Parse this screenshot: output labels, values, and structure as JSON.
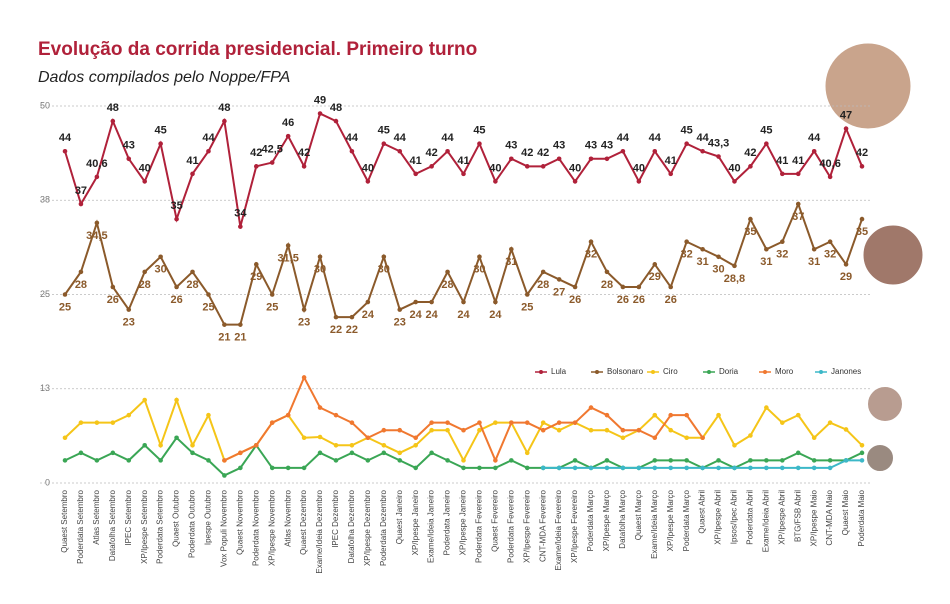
{
  "chart_data": {
    "type": "line",
    "title": "Evolução da corrida presidencial. Primeiro turno",
    "subtitle": "Dados compilados pelo Noppe/FPA",
    "categories": [
      "Quaest Setembro",
      "Poderdata Setembro",
      "Atlas Setembro",
      "Datafolha Setembro",
      "IPEC Setembro",
      "XP/Ipespe Setembro",
      "Poderdata Setembro",
      "Quaest Outubro",
      "Poderdata Outubro",
      "Ipespe Outubro",
      "Vox Populi Novembro",
      "Quaest Novembro",
      "Poderdata Novembro",
      "XP/Ipespe Novembro",
      "Atlas Novembro",
      "Quaest Dezembro",
      "Exame/Ideia Dezembro",
      "IPEC Dezembro",
      "Datafolha Dezembro",
      "XP/Ipespe Dezembro",
      "Poderdata Dezembro",
      "Quaest Janeiro",
      "XP/Ipespe Janeiro",
      "Exame/Ideia Janeiro",
      "Poderdata Janeiro",
      "XP/Ipespe Janeiro",
      "Poderdata Fevereiro",
      "Quaest Fevereiro",
      "Poderdata Fevereiro",
      "XP/Ipespe Fevereiro",
      "CNT-MDA Fevereiro",
      "Exame/Ideia Fevereiro",
      "XP/Ipespe Fevereiro",
      "Poderdata Março",
      "XP/Ipespe Março",
      "Datafolha Março",
      "Quaest Março",
      "Exame/Ideia Março",
      "XP/Ipespe Março",
      "Poderdata Março",
      "Quaest Abril",
      "XP/Ipespe Abril",
      "Ipsos/Ipec Abril",
      "Poderdata Abril",
      "Exame/Ideia Abril",
      "XP/Ipespe Abril",
      "BTG/FSB Abril",
      "XP/Ipespe Maio",
      "CNT-MDA Maio",
      "Quaest Maio",
      "Poderdata Maio"
    ],
    "series": [
      {
        "name": "Lula",
        "color": "#b0213a",
        "values": [
          44,
          37,
          40.6,
          48,
          43,
          40,
          45,
          35,
          41,
          44,
          48,
          34,
          42,
          42.5,
          46,
          42,
          49,
          48,
          44,
          40,
          45,
          44,
          41,
          42,
          44,
          41,
          45,
          40,
          43,
          42,
          42,
          43,
          40,
          43,
          43,
          44,
          40,
          44,
          41,
          45,
          44,
          43.3,
          40,
          42,
          45,
          41,
          41,
          44,
          40.6,
          47,
          42
        ],
        "value_labels": [
          "44",
          "37",
          "40,6",
          "48",
          "43",
          "40",
          "45",
          "35",
          "41",
          "44",
          "48",
          "34",
          "42",
          "42,5",
          "46",
          "42",
          "49",
          "48",
          "44",
          "40",
          "45",
          "44",
          "41",
          "42",
          "44",
          "41",
          "45",
          "40",
          "43",
          "42",
          "42",
          "43",
          "40",
          "43",
          "43",
          "44",
          "40",
          "44",
          "41",
          "45",
          "44",
          "43,3",
          "40",
          "42",
          "45",
          "41",
          "41",
          "44",
          "40,6",
          "47",
          "42"
        ]
      },
      {
        "name": "Bolsonaro",
        "color": "#8b5a2b",
        "values": [
          25,
          28,
          34.5,
          26,
          23,
          28,
          30,
          26,
          28,
          25,
          21,
          21,
          29,
          25,
          31.5,
          23,
          30,
          22,
          22,
          24,
          30,
          23,
          24,
          24,
          28,
          24,
          30,
          24,
          31,
          25,
          28,
          27,
          26,
          32,
          28,
          26,
          26,
          29,
          26,
          32,
          31,
          30,
          28.8,
          35,
          31,
          32,
          37,
          31,
          32,
          29,
          35
        ],
        "value_labels": [
          "25",
          "28",
          "34,5",
          "26",
          "23",
          "28",
          "30",
          "26",
          "28",
          "25",
          "21",
          "21",
          "29",
          "25",
          "31,5",
          "23",
          "30",
          "22",
          "22",
          "24",
          "30",
          "23",
          "24",
          "24",
          "28",
          "24",
          "30",
          "24",
          "31",
          "25",
          "28",
          "27",
          "26",
          "32",
          "28",
          "26",
          "26",
          "29",
          "26",
          "32",
          "31",
          "30",
          "28,8",
          "35",
          "31",
          "32",
          "37",
          "31",
          "32",
          "29",
          "35"
        ]
      },
      {
        "name": "Ciro",
        "color": "#f5c518",
        "values": [
          6,
          8,
          8,
          8,
          9,
          11,
          5,
          11,
          5,
          9,
          3,
          4,
          5,
          8,
          9,
          6,
          6.1,
          5,
          5,
          6,
          5,
          4,
          5,
          7,
          7,
          3,
          7,
          8,
          8,
          4,
          8,
          7,
          8,
          7,
          7,
          6,
          7,
          9,
          7,
          6,
          6,
          9,
          5,
          6.3,
          10,
          8,
          9,
          6,
          8,
          7.1,
          5
        ]
      },
      {
        "name": "Doria",
        "color": "#3aa655",
        "values": [
          3,
          4,
          3,
          4,
          3,
          5,
          3,
          6,
          4,
          3,
          1,
          2,
          5,
          2,
          2,
          2,
          4,
          3,
          4,
          3,
          4,
          3,
          2,
          4,
          3,
          2,
          2,
          2,
          3,
          2,
          2,
          2,
          3,
          2,
          3,
          2,
          2,
          3,
          3,
          3,
          2,
          3,
          2,
          3,
          3,
          3,
          4,
          3,
          3,
          3,
          4
        ]
      },
      {
        "name": "Moro",
        "color": "#f07830",
        "values": [
          null,
          null,
          null,
          null,
          null,
          null,
          null,
          null,
          null,
          null,
          3,
          4,
          5,
          8,
          9,
          14,
          10,
          9,
          8,
          6,
          7,
          7,
          6,
          8,
          8,
          7,
          8,
          3,
          8,
          8,
          7,
          8,
          8,
          10,
          9,
          7,
          7,
          6,
          9,
          9,
          6,
          null,
          null,
          null,
          null,
          null,
          null,
          null,
          null,
          null,
          null
        ]
      },
      {
        "name": "Janones",
        "color": "#3cb8c8",
        "values": [
          null,
          null,
          null,
          null,
          null,
          null,
          null,
          null,
          null,
          null,
          null,
          null,
          null,
          null,
          null,
          null,
          null,
          null,
          null,
          null,
          null,
          null,
          null,
          null,
          null,
          null,
          null,
          null,
          null,
          null,
          2,
          2,
          2,
          2,
          2,
          2,
          2,
          2,
          2,
          2,
          2,
          2,
          2,
          2,
          2,
          2,
          2,
          2,
          2,
          3,
          3
        ]
      }
    ],
    "ylim": [
      0,
      50
    ],
    "yticks": [
      0,
      {
        "value": 12.5,
        "label": "13"
      },
      25,
      {
        "value": 37.5,
        "label": "38"
      },
      50
    ],
    "grid": true,
    "legend": "right"
  }
}
